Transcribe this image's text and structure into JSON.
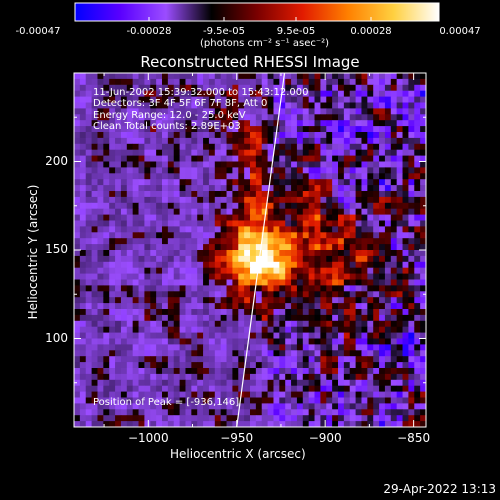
{
  "colorbar": {
    "ticks": [
      "-0.00047",
      "-0.00028",
      "-9.5e-05",
      "9.5e-05",
      "0.00028",
      "0.00047"
    ],
    "unit_label": "(photons cm⁻² s⁻¹ asec⁻²)",
    "colors": [
      "#0000ff",
      "#5a00ff",
      "#9b4dff",
      "#000000",
      "#7a0000",
      "#e21b00",
      "#ff8000",
      "#ffd040",
      "#ffffff"
    ]
  },
  "chart_data": {
    "type": "heatmap",
    "title": "Reconstructed RHESSI Image",
    "xlabel": "Heliocentric X (arcsec)",
    "ylabel": "Heliocentric Y (arcsec)",
    "xlim": [
      -1042,
      -843
    ],
    "ylim": [
      50,
      250
    ],
    "x_ticks": [
      -1000,
      -950,
      -900,
      -850
    ],
    "x_tick_labels": [
      "−1000",
      "−950",
      "−900",
      "−850"
    ],
    "y_ticks": [
      100,
      150,
      200
    ],
    "y_tick_labels": [
      "100",
      "150",
      "200"
    ],
    "peak": [
      -936,
      146
    ],
    "limb_line": [
      [
        -950,
        50
      ],
      [
        -923,
        250
      ]
    ],
    "info_lines": [
      "11-Jun-2002 15:39:32.000 to 15:43:12.000",
      "Detectors: 3F 4F 5F 6F 7F 8F, Att 0",
      "Energy Range: 12.0 - 25.0 keV",
      "Clean     Total counts: 2.89E+03"
    ],
    "peak_label": "Position of Peak = [-936,146]"
  },
  "timestamp": "29-Apr-2022 13:13"
}
